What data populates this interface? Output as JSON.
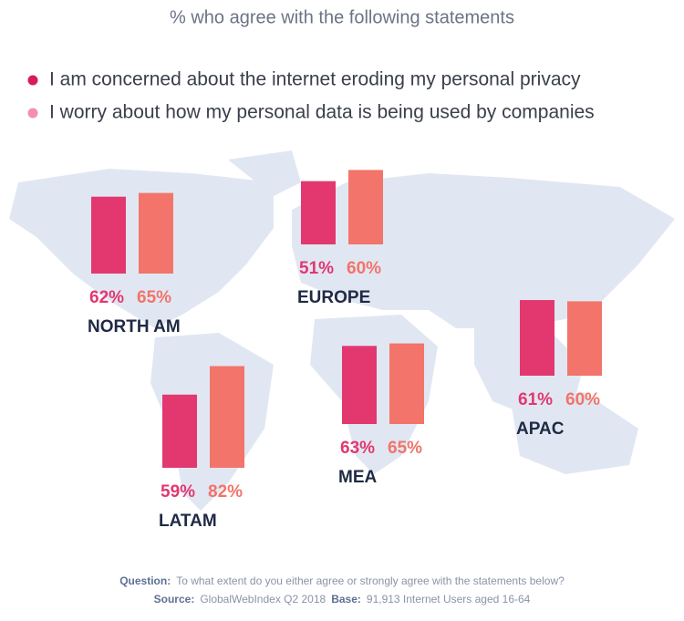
{
  "chart_data": {
    "type": "bar",
    "title": "% who agree with the following statements",
    "categories": [
      "NORTH AM",
      "EUROPE",
      "APAC",
      "MEA",
      "LATAM"
    ],
    "series": [
      {
        "name": "I am concerned about the internet eroding my personal privacy",
        "color": "#e2386f",
        "legend_color": "#d81b60",
        "values": [
          62,
          51,
          61,
          63,
          59
        ],
        "value_labels": [
          "62%",
          "51%",
          "61%",
          "63%",
          "59%"
        ]
      },
      {
        "name": "I worry about how my personal data is being used by companies",
        "color": "#f2746a",
        "legend_color": "#f48fb1",
        "values": [
          65,
          60,
          60,
          65,
          82
        ],
        "value_labels": [
          "65%",
          "60%",
          "60%",
          "65%",
          "82%"
        ]
      }
    ],
    "footnotes": [
      [
        {
          "label": "Question:",
          "text": "To what extent do you either agree or strongly agree with the statements below?"
        }
      ],
      [
        {
          "label": "Source:",
          "text": "GlobalWebIndex Q2 2018"
        },
        {
          "label": "Base:",
          "text": "91,913 Internet Users aged 16-64"
        }
      ]
    ]
  }
}
